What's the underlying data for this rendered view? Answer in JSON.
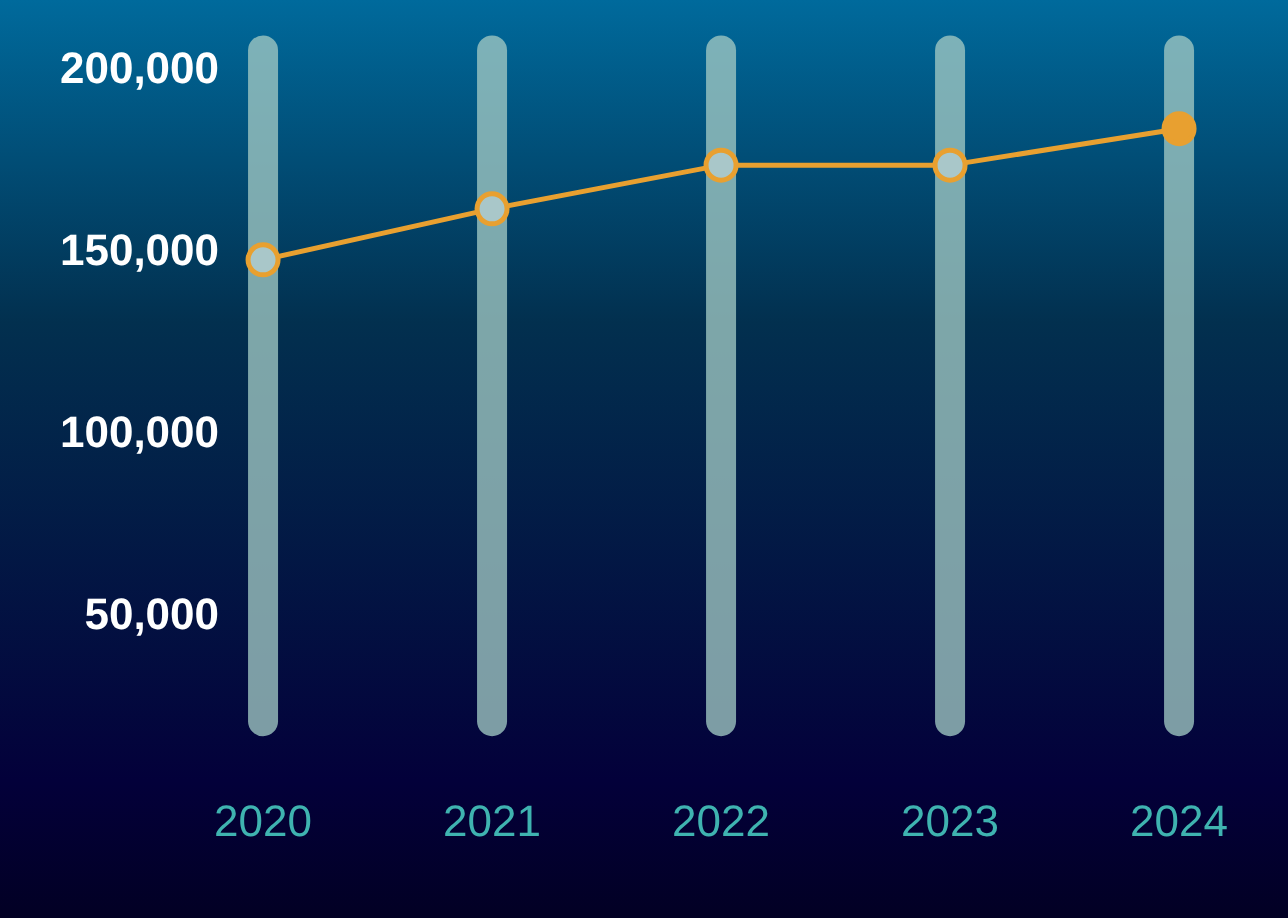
{
  "chart_data": {
    "type": "line",
    "categories": [
      "2020",
      "2021",
      "2022",
      "2023",
      "2024"
    ],
    "series": [
      {
        "color": "#e8a030",
        "colors": [
          "#a9c7c9",
          "#a9c7c9",
          "#a9c7c9",
          "#a9c7c9",
          "#e8a030"
        ],
        "values": [
          148000,
          162000,
          174000,
          174000,
          184000
        ]
      }
    ],
    "ylim": [
      17000,
      200000
    ],
    "yticks": [
      {
        "value": 50000,
        "label": "50,000"
      },
      {
        "value": 100000,
        "label": "100,000"
      },
      {
        "value": 150000,
        "label": "150,000"
      },
      {
        "value": 200000,
        "label": "200,000"
      }
    ],
    "grid": "x",
    "legend": false,
    "marker": "circle",
    "line_style": "solid"
  }
}
